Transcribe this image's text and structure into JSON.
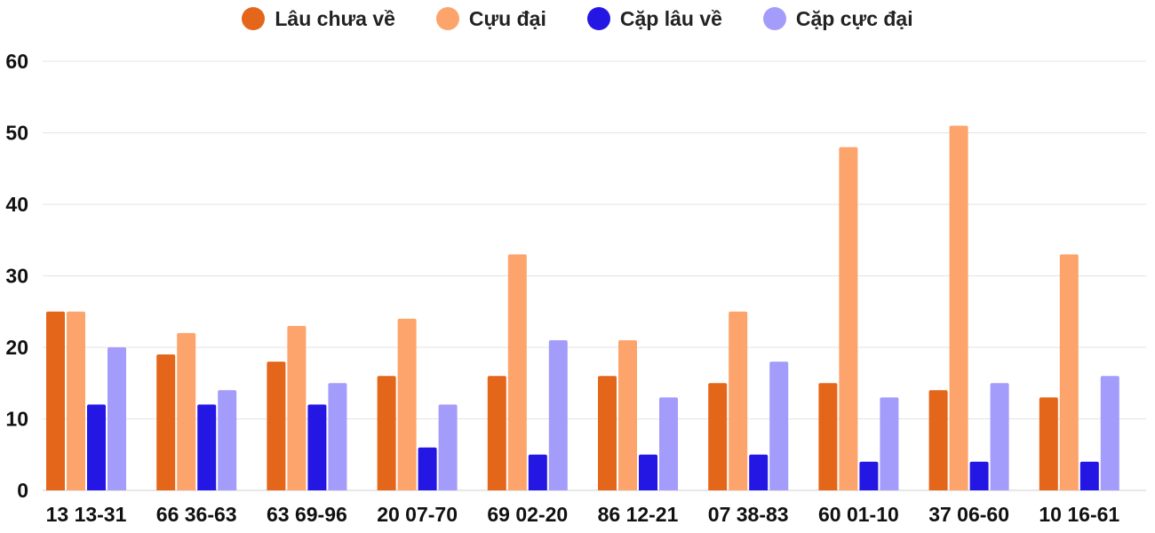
{
  "chart_data": {
    "type": "bar",
    "title": "",
    "xlabel": "",
    "ylabel": "",
    "ylim": [
      0,
      60
    ],
    "yticks": [
      0,
      10,
      20,
      30,
      40,
      50,
      60
    ],
    "grid": true,
    "legend_position": "top-center",
    "categories": [
      "13 13-31",
      "66 36-63",
      "63 69-96",
      "20 07-70",
      "69 02-20",
      "86 12-21",
      "07 38-83",
      "60 01-10",
      "37 06-60",
      "10 16-61"
    ],
    "series": [
      {
        "name": "Lâu chưa về",
        "color": "#e4661a",
        "values": [
          25,
          19,
          18,
          16,
          16,
          16,
          15,
          15,
          14,
          13
        ]
      },
      {
        "name": "Cựu đại",
        "color": "#fca46b",
        "values": [
          25,
          22,
          23,
          24,
          33,
          21,
          25,
          48,
          51,
          33
        ]
      },
      {
        "name": "Cặp lâu về",
        "color": "#2517e3",
        "values": [
          12,
          12,
          12,
          6,
          5,
          5,
          5,
          4,
          4,
          4
        ]
      },
      {
        "name": "Cặp cực đại",
        "color": "#a39cfb",
        "values": [
          20,
          14,
          15,
          12,
          21,
          13,
          18,
          13,
          15,
          16
        ]
      }
    ]
  }
}
